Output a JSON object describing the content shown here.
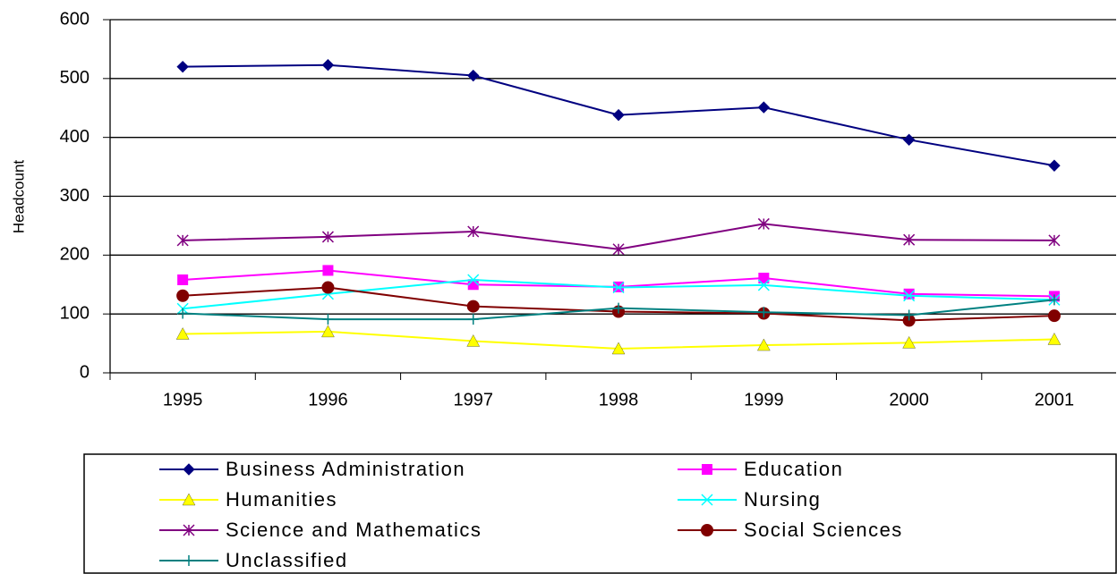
{
  "chart_data": {
    "type": "line",
    "y_label": "Headcount",
    "categories": [
      "1995",
      "1996",
      "1997",
      "1998",
      "1999",
      "2000",
      "2001"
    ],
    "ylim": [
      0,
      600
    ],
    "yticks": [
      0,
      100,
      200,
      300,
      400,
      500,
      600
    ],
    "grid": true,
    "series": [
      {
        "name": "Business Administration",
        "color": "#000080",
        "marker": "diamond",
        "values": [
          520,
          523,
          505,
          438,
          451,
          396,
          352
        ]
      },
      {
        "name": "Education",
        "color": "#ff00ff",
        "marker": "square",
        "values": [
          158,
          174,
          150,
          146,
          161,
          134,
          130
        ]
      },
      {
        "name": "Humanities",
        "color": "#ffff00",
        "marker": "triangle",
        "values": [
          66,
          70,
          54,
          41,
          47,
          51,
          57
        ]
      },
      {
        "name": "Nursing",
        "color": "#00ffff",
        "marker": "x",
        "values": [
          109,
          134,
          158,
          145,
          149,
          131,
          124
        ]
      },
      {
        "name": "Science and Mathematics",
        "color": "#800080",
        "marker": "asterisk",
        "values": [
          225,
          231,
          240,
          210,
          253,
          226,
          225
        ]
      },
      {
        "name": "Social Sciences",
        "color": "#800000",
        "marker": "circle",
        "values": [
          131,
          145,
          113,
          104,
          101,
          89,
          97
        ]
      },
      {
        "name": "Unclassified",
        "color": "#008080",
        "marker": "plus",
        "values": [
          101,
          91,
          91,
          110,
          103,
          98,
          124
        ]
      }
    ]
  }
}
